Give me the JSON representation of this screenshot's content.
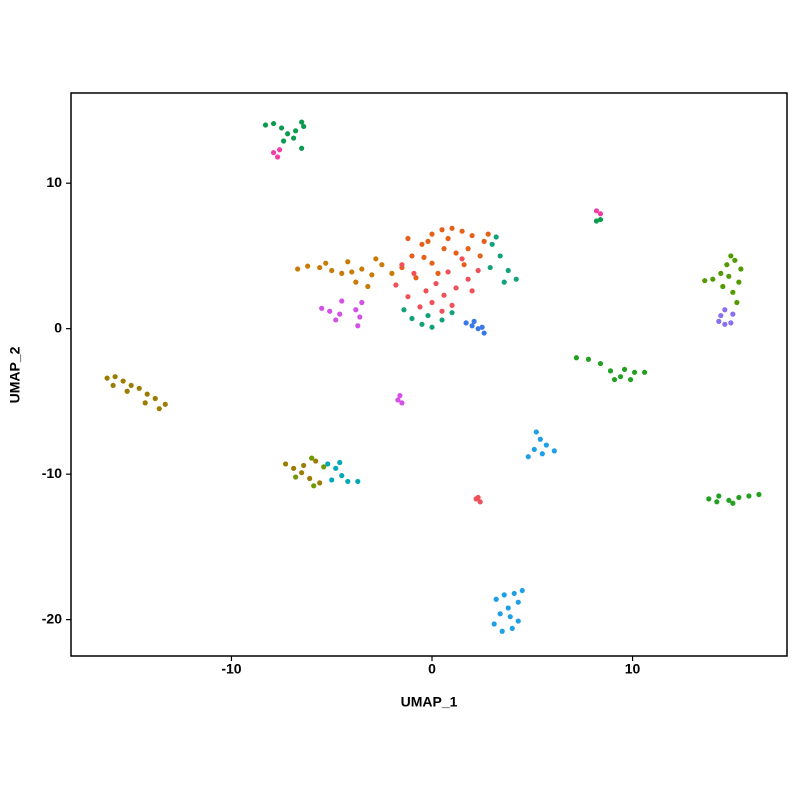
{
  "chart_data": {
    "type": "scatter",
    "x_label": "UMAP_1",
    "y_label": "UMAP_2",
    "xlim": [
      -18,
      17.7
    ],
    "ylim": [
      -22.5,
      16.2
    ],
    "xticks": [
      -10,
      0,
      10
    ],
    "yticks": [
      -20,
      -10,
      0,
      10
    ],
    "grid": false,
    "series": [
      {
        "color": "#E5611B",
        "x": [
          -1.5,
          -1,
          -0.5,
          0,
          0.5,
          1,
          1.5,
          2,
          2.6,
          -0.8,
          0,
          0.6,
          1.2,
          1.8,
          2.4,
          -0.2,
          0.3,
          1.6,
          -1.2,
          2.8,
          0.8,
          -0.4
        ],
        "y": [
          4.2,
          5,
          5.8,
          6.5,
          6.8,
          6.9,
          6.7,
          6.4,
          6,
          3.5,
          4.5,
          5.5,
          5.2,
          5.5,
          5,
          6,
          3.8,
          4.4,
          6.2,
          6.5,
          6.2,
          4.9
        ]
      },
      {
        "color": "#C97B08",
        "x": [
          -6.7,
          -6.2,
          -5.6,
          -5,
          -4.5,
          -4,
          -3.5,
          -3,
          -2.5,
          -2,
          -3.8,
          -5.3,
          -4.2,
          -2.8,
          -3.2
        ],
        "y": [
          4.1,
          4.3,
          4.2,
          4,
          3.8,
          3.9,
          4.1,
          3.7,
          4.4,
          3.8,
          3.2,
          4.5,
          4.6,
          4.8,
          2.9
        ]
      },
      {
        "color": "#F0505A",
        "x": [
          -1.8,
          -1.2,
          -0.6,
          0,
          0.6,
          1.2,
          1.8,
          2.3,
          -0.9,
          0.2,
          0.8,
          1.5,
          -0.3,
          -1.5,
          0.5,
          2,
          1,
          2.2,
          2.4,
          2.3
        ],
        "y": [
          3,
          2.2,
          1.5,
          1.8,
          2.3,
          2.8,
          3.4,
          4,
          3.8,
          3.1,
          3.9,
          4.8,
          2.6,
          4.4,
          1.2,
          2.6,
          1.6,
          -11.7,
          -11.9,
          -11.6
        ]
      },
      {
        "color": "#12A27A",
        "x": [
          -1.4,
          -1,
          -0.5,
          0,
          0.5,
          1,
          -0.2,
          3,
          3.4,
          3.8,
          4.2,
          3.6,
          2.9,
          3.2
        ],
        "y": [
          1.3,
          0.7,
          0.3,
          0.1,
          0.6,
          1.1,
          0.9,
          5.8,
          5,
          4,
          3.4,
          3.2,
          4.2,
          6.3
        ]
      },
      {
        "color": "#3B78E7",
        "x": [
          1.7,
          2,
          2.3,
          2.6,
          2.1,
          2.5
        ],
        "y": [
          0.4,
          0.2,
          0,
          -0.3,
          0.5,
          0.1
        ]
      },
      {
        "color": "#D451E5",
        "x": [
          -5.5,
          -5.1,
          -4.8,
          -4.6,
          -4.5,
          -3.7,
          -3.6,
          -3.8,
          -3.5,
          -1.6,
          -1.5,
          -1.7
        ],
        "y": [
          1.4,
          1.2,
          0.6,
          1,
          1.9,
          0.2,
          0.8,
          1.3,
          1.8,
          -4.6,
          -5.1,
          -4.9
        ]
      },
      {
        "color": "#0B9B4F",
        "x": [
          -8.3,
          -7.9,
          -7.5,
          -7.2,
          -6.8,
          -6.5,
          -6.4,
          -6.9,
          -6.5,
          -7.4,
          8.2,
          8.4
        ],
        "y": [
          14,
          14.1,
          13.8,
          13.4,
          13.6,
          14.2,
          13.9,
          13.1,
          12.4,
          12.9,
          7.4,
          7.5
        ]
      },
      {
        "color": "#F03FA6",
        "x": [
          -7.9,
          -7.7,
          -7.6,
          8.2,
          8.4
        ],
        "y": [
          12.1,
          11.8,
          12.3,
          8.1,
          7.9
        ]
      },
      {
        "color": "#529A00",
        "x": [
          13.6,
          14,
          14.4,
          14.7,
          14.9,
          15.1,
          15.4,
          15.3,
          15,
          15.2,
          14.8,
          14.5
        ],
        "y": [
          3.3,
          3.4,
          3.8,
          4.4,
          5,
          4.7,
          4.1,
          3.2,
          2.5,
          1.8,
          3.6,
          2.9
        ]
      },
      {
        "color": "#8A6FF0",
        "x": [
          14.3,
          14.6,
          14.9,
          15,
          14.6,
          14.4
        ],
        "y": [
          0.5,
          0.3,
          0.4,
          1,
          1.3,
          0.9
        ]
      },
      {
        "color": "#23A020",
        "x": [
          7.2,
          7.8,
          8.4,
          8.9,
          9.4,
          9.9,
          10.1,
          9.6,
          10.6,
          9.1,
          13.8,
          14.3,
          14.8,
          15.3,
          15.8,
          16.3,
          15,
          14.2
        ],
        "y": [
          -2,
          -2.1,
          -2.4,
          -2.9,
          -3.3,
          -3.5,
          -3,
          -2.8,
          -3,
          -3.5,
          -11.7,
          -11.5,
          -11.8,
          -11.6,
          -11.5,
          -11.4,
          -12,
          -11.9
        ]
      },
      {
        "color": "#1E9FE6",
        "x": [
          5.2,
          5.4,
          5.7,
          5.1,
          5.5,
          6.1,
          4.8,
          3.2,
          3.6,
          4.1,
          4.5,
          4.3,
          3.8,
          3.4,
          3.1,
          3.5,
          4,
          4.3,
          3.9
        ],
        "y": [
          -7.1,
          -7.6,
          -8,
          -8.3,
          -8.6,
          -8.4,
          -8.8,
          -18.6,
          -18.3,
          -18.2,
          -18,
          -18.8,
          -19.2,
          -19.6,
          -20.3,
          -20.8,
          -20.6,
          -20.1,
          -19.8
        ]
      },
      {
        "color": "#9B7C00",
        "x": [
          -16.2,
          -15.8,
          -15.4,
          -15,
          -14.6,
          -14.2,
          -13.8,
          -13.3,
          -13.6,
          -14.3,
          -15.2,
          -15.9,
          -7.3,
          -6.9,
          -6.5,
          -6.1,
          -5.8,
          -6.4,
          -5.6
        ],
        "y": [
          -3.4,
          -3.3,
          -3.6,
          -3.9,
          -4.1,
          -4.5,
          -4.8,
          -5.2,
          -5.5,
          -5.1,
          -4.3,
          -3.9,
          -9.3,
          -9.6,
          -9.9,
          -10.3,
          -9.1,
          -9.4,
          -10.6
        ]
      },
      {
        "color": "#6E9900",
        "x": [
          -6.8,
          -6,
          -5.4,
          -5.9
        ],
        "y": [
          -10.2,
          -8.9,
          -9.5,
          -10.8
        ]
      },
      {
        "color": "#00A8B8",
        "x": [
          -5.2,
          -4.8,
          -4.5,
          -4.2,
          -3.7,
          -5,
          -4.6
        ],
        "y": [
          -9.3,
          -9.6,
          -10.1,
          -10.5,
          -10.5,
          -10.4,
          -9.2
        ]
      }
    ]
  }
}
